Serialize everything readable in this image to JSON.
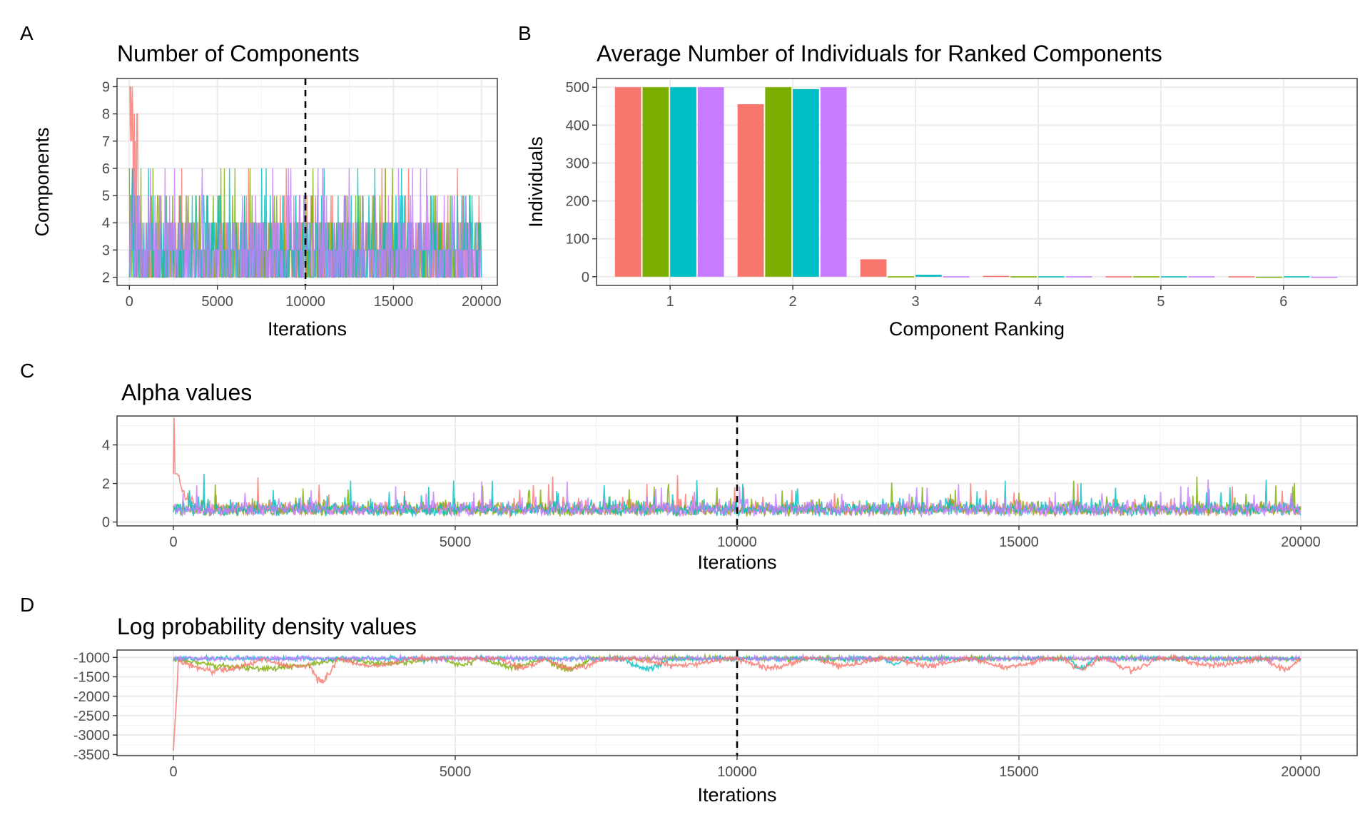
{
  "panels": {
    "A": {
      "letter": "A"
    },
    "B": {
      "letter": "B"
    },
    "C": {
      "letter": "C"
    },
    "D": {
      "letter": "D"
    }
  },
  "colors": {
    "series": [
      "#F8766D",
      "#7CAE00",
      "#00BFC4",
      "#C77CFF"
    ],
    "dashed_line": "#000000"
  },
  "chart_data": [
    {
      "id": "A",
      "type": "line",
      "title": "Number of Components",
      "xlabel": "Iterations",
      "ylabel": "Components",
      "xlim": [
        -700,
        20900
      ],
      "ylim": [
        1.7,
        9.3
      ],
      "x_ticks": [
        0,
        5000,
        10000,
        15000,
        20000
      ],
      "y_ticks": [
        2,
        3,
        4,
        5,
        6,
        7,
        8,
        9
      ],
      "vline_x": 10000,
      "grid": true,
      "legend": "none",
      "series_count": 4,
      "trace_summary": {
        "typical_range": [
          2,
          4
        ],
        "spikes_to": 6,
        "initial_max": 9,
        "iterations": 20000
      }
    },
    {
      "id": "B",
      "type": "bar",
      "title": "Average Number of Individuals for Ranked Components",
      "xlabel": "Component Ranking",
      "ylabel": "Individuals",
      "categories": [
        "1",
        "2",
        "3",
        "4",
        "5",
        "6"
      ],
      "ylim": [
        -23,
        523
      ],
      "y_ticks": [
        0,
        100,
        200,
        300,
        400,
        500
      ],
      "series": [
        {
          "values": [
            500,
            455,
            46,
            2,
            1,
            1
          ]
        },
        {
          "values": [
            500,
            500,
            1,
            1,
            1,
            0
          ]
        },
        {
          "values": [
            500,
            495,
            5,
            1,
            1,
            1
          ]
        },
        {
          "values": [
            500,
            500,
            1,
            1,
            1,
            0
          ]
        }
      ],
      "grid": true,
      "legend": "none"
    },
    {
      "id": "C",
      "type": "line",
      "title": "Alpha values",
      "xlabel": "Iterations",
      "ylabel": "",
      "xlim": [
        -1000,
        21000
      ],
      "ylim": [
        -0.2,
        5.5
      ],
      "x_ticks": [
        0,
        5000,
        10000,
        15000,
        20000
      ],
      "y_ticks": [
        0,
        2,
        4
      ],
      "vline_x": 10000,
      "grid": true,
      "legend": "none",
      "series_count": 4,
      "trace_summary": {
        "initial_peak": 5.4,
        "typical_range": [
          0.1,
          1.2
        ],
        "occasional_peaks": 2.5,
        "iterations": 20000
      }
    },
    {
      "id": "D",
      "type": "line",
      "title": "Log probability density values",
      "xlabel": "Iterations",
      "ylabel": "",
      "xlim": [
        -1000,
        21000
      ],
      "ylim": [
        -3530,
        -810
      ],
      "x_ticks": [
        0,
        5000,
        10000,
        15000,
        20000
      ],
      "y_ticks": [
        -1000,
        -1500,
        -2000,
        -2500,
        -3000,
        -3500
      ],
      "vline_x": 10000,
      "grid": true,
      "legend": "none",
      "series_count": 4,
      "trace_summary": {
        "initial_value": -3400,
        "plateau": -1000,
        "dips_to": -1800,
        "iterations": 20000
      }
    }
  ]
}
